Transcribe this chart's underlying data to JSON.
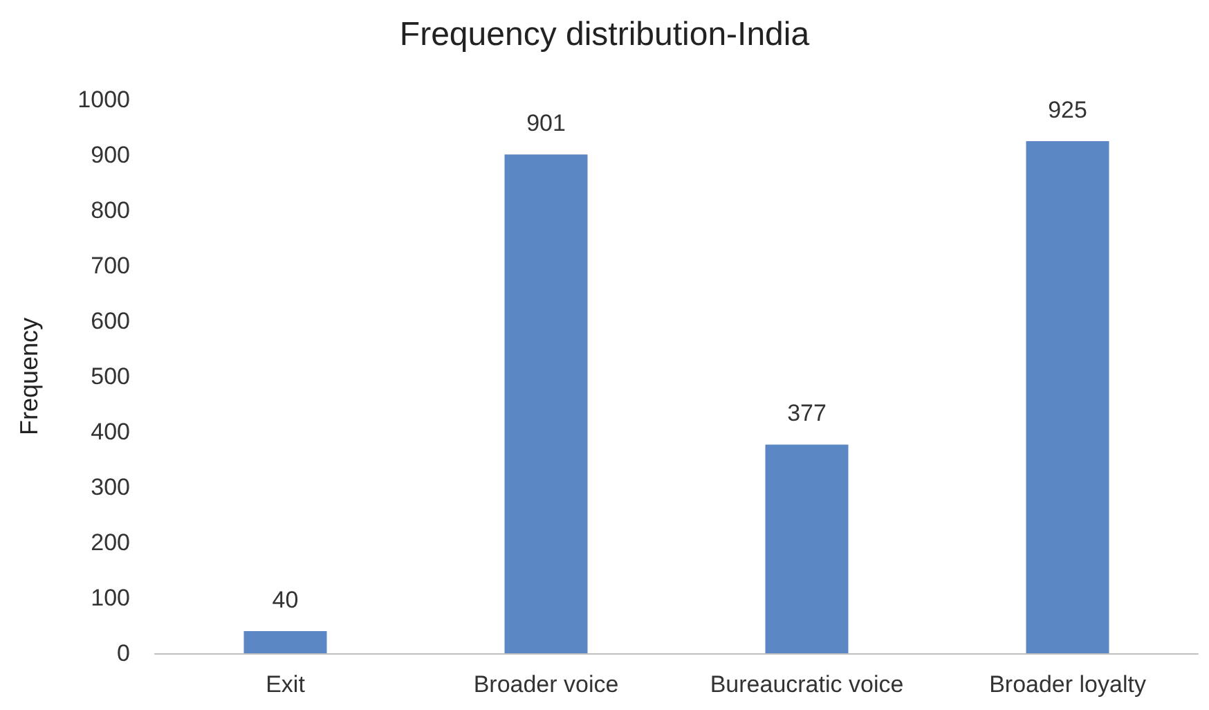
{
  "chart_data": {
    "type": "bar",
    "title": "Frequency distribution-India",
    "ylabel": "Frequency",
    "categories": [
      "Exit",
      "Broader voice",
      "Bureaucratic voice",
      "Broader loyalty"
    ],
    "values": [
      40,
      901,
      377,
      925
    ],
    "color": "#5b87c5",
    "ylim": [
      0,
      1000
    ],
    "yticks": [
      0,
      100,
      200,
      300,
      400,
      500,
      600,
      700,
      800,
      900,
      1000
    ],
    "grid": false,
    "data_labels": true
  }
}
